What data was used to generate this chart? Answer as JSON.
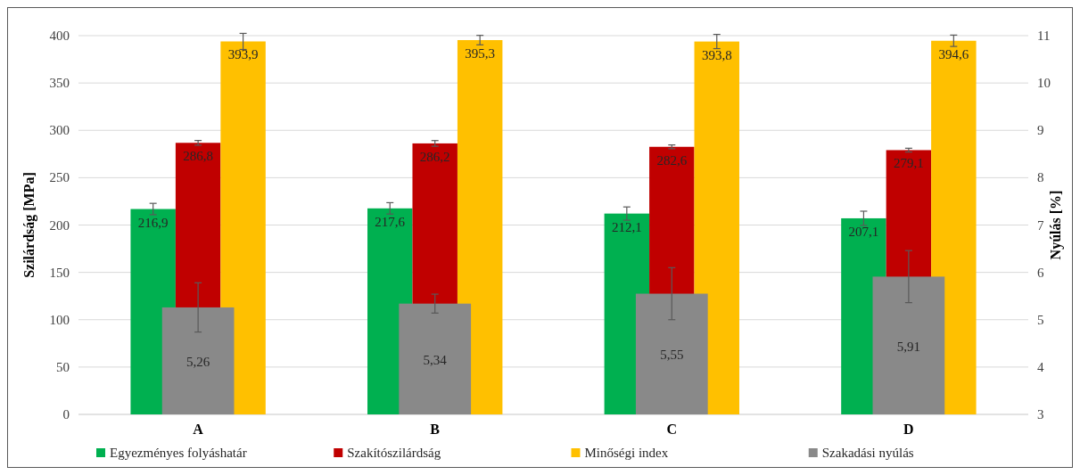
{
  "chart_data": {
    "type": "bar",
    "ylabel": "Szilárdság [MPa]",
    "y2label": "Nyúlás [%]",
    "categories": [
      "A",
      "B",
      "C",
      "D"
    ],
    "series": [
      {
        "name": "Egyezményes folyáshatár",
        "color": "#00b050",
        "values": [
          216.9,
          217.6,
          212.1,
          207.1
        ],
        "errors": [
          6,
          6,
          7,
          7.5
        ],
        "value_labels": [
          "216,9",
          "217,6",
          "212,1",
          "207,1"
        ]
      },
      {
        "name": "Szakítószilárdság",
        "color": "#c00000",
        "values": [
          286.8,
          286.2,
          282.6,
          279.1
        ],
        "errors": [
          2.5,
          3,
          2,
          2
        ],
        "value_labels": [
          "286,8",
          "286,2",
          "282,6",
          "279,1"
        ]
      },
      {
        "name": "Minőségi index",
        "color": "#ffc000",
        "values": [
          393.9,
          395.3,
          393.8,
          394.6
        ],
        "errors": [
          8.5,
          5,
          7.5,
          6
        ],
        "value_labels": [
          "393,9",
          "395,3",
          "393,8",
          "394,6"
        ]
      },
      {
        "name": "Szakadási nyúlás",
        "color": "#898989",
        "axis": "y2",
        "values": [
          5.26,
          5.34,
          5.55,
          5.91
        ],
        "errors": [
          0.52,
          0.2,
          0.55,
          0.55
        ],
        "value_labels": [
          "5,26",
          "5,34",
          "5,55",
          "5,91"
        ]
      }
    ],
    "ylim": [
      0,
      400
    ],
    "yticks": [
      0,
      50,
      100,
      150,
      200,
      250,
      300,
      350,
      400
    ],
    "y2lim": [
      3,
      11
    ],
    "y2ticks": [
      3,
      4,
      5,
      6,
      7,
      8,
      9,
      10,
      11
    ],
    "grid": "y",
    "legend": "bottom"
  }
}
